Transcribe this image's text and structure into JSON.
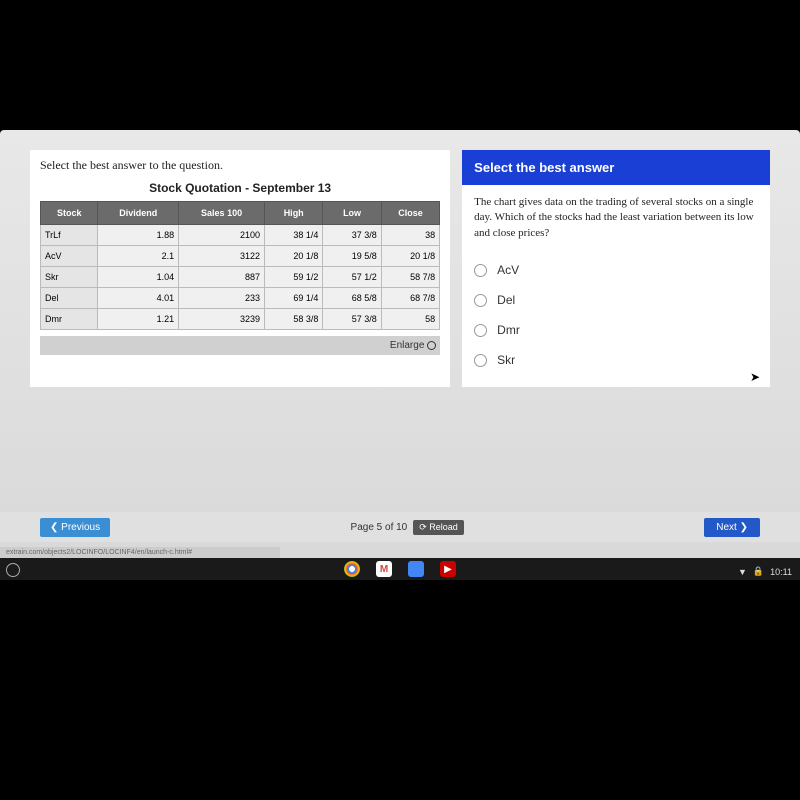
{
  "instruction": "Select the best answer to the question.",
  "table_title": "Stock Quotation - September 13",
  "columns": [
    "Stock",
    "Dividend",
    "Sales 100",
    "High",
    "Low",
    "Close"
  ],
  "rows": [
    [
      "TrLf",
      "1.88",
      "2100",
      "38 1/4",
      "37 3/8",
      "38"
    ],
    [
      "AcV",
      "2.1",
      "3122",
      "20 1/8",
      "19 5/8",
      "20 1/8"
    ],
    [
      "Skr",
      "1.04",
      "887",
      "59 1/2",
      "57 1/2",
      "58 7/8"
    ],
    [
      "Del",
      "4.01",
      "233",
      "69 1/4",
      "68 5/8",
      "68 7/8"
    ],
    [
      "Dmr",
      "1.21",
      "3239",
      "58 3/8",
      "57 3/8",
      "58"
    ]
  ],
  "enlarge": "Enlarge",
  "right_header": "Select the best answer",
  "question": "The chart gives data on the trading of several stocks on a single day. Which of the stocks had the least variation between its low and close prices?",
  "options": [
    "AcV",
    "Del",
    "Dmr",
    "Skr"
  ],
  "prev": "❮ Previous",
  "page": "Page 5 of 10",
  "reload": "⟳ Reload",
  "next": "Next ❯",
  "url": "extrain.com/objects2/LOCINFO/LOCINF4/en/launch-c.html#",
  "time": "10:11",
  "gmail_letter": "M"
}
